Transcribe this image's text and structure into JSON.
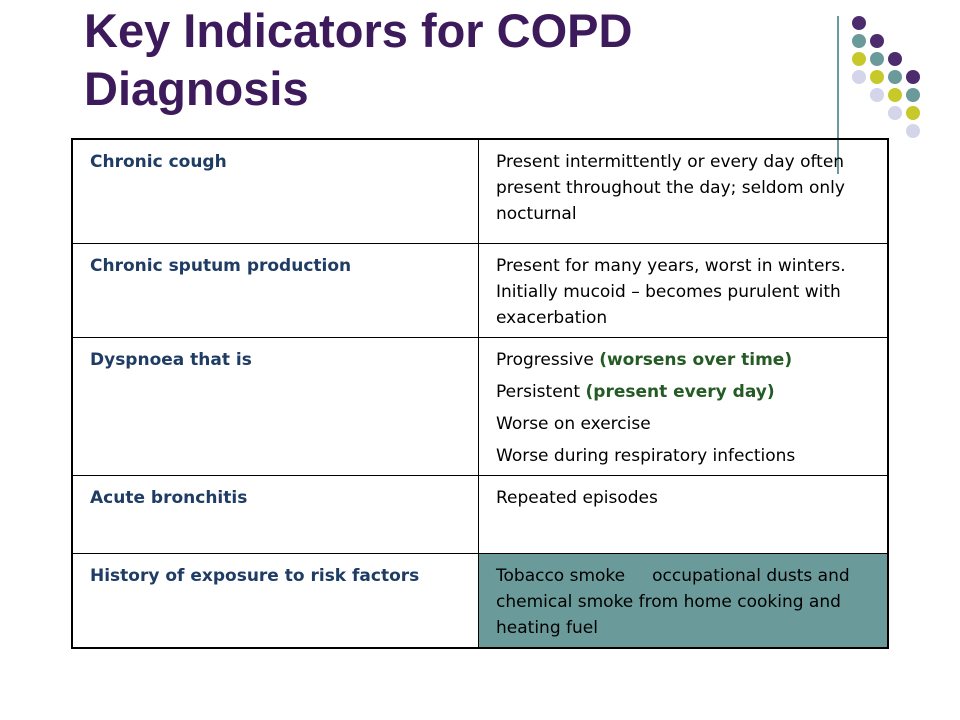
{
  "slide": {
    "title_line1": "Key Indicators for COPD",
    "title_line2": "Diagnosis"
  },
  "colors": {
    "title": "#3d1a5b",
    "indicator_text": "#1f3c64",
    "highlight_text": "#245a24",
    "teal": "#6a9a9a",
    "purple": "#4c2c6c",
    "lime": "#c7c82a",
    "lavender": "#d4d4ea"
  },
  "decoration": {
    "dot_colors": [
      "purple",
      "teal",
      "lime",
      "lavender"
    ]
  },
  "table": {
    "rows": [
      {
        "indicator": "Chronic cough",
        "lines": [
          {
            "text": "Present intermittently or every day often present throughout the day; seldom only nocturnal"
          }
        ]
      },
      {
        "indicator": "Chronic sputum production",
        "lines": [
          {
            "text": "Present for many years, worst in winters.  Initially mucoid – becomes purulent with exacerbation"
          }
        ]
      },
      {
        "indicator": "Dyspnoea that is",
        "lines": [
          {
            "text": "Progressive ",
            "emphasis": "(worsens over time)"
          },
          {
            "text": "Persistent ",
            "emphasis": "(present every day)"
          },
          {
            "text": "Worse on exercise"
          },
          {
            "text": "Worse during respiratory infections"
          }
        ]
      },
      {
        "indicator": "Acute bronchitis",
        "lines": [
          {
            "text": "Repeated episodes"
          }
        ]
      },
      {
        "indicator": "History of exposure to risk factors",
        "highlighted": true,
        "lines": [
          {
            "text": "Tobacco smoke     occupational dusts and chemical smoke from home cooking and heating fuel"
          }
        ]
      }
    ]
  }
}
